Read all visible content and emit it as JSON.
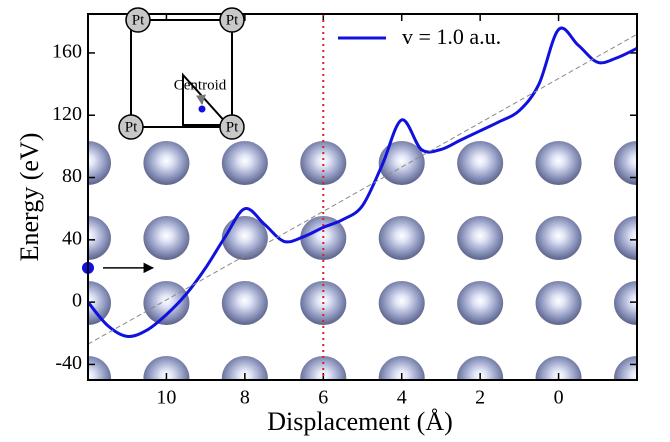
{
  "chart_data": {
    "type": "line",
    "xlabel": "Displacement (Å)",
    "ylabel": "Energy (eV)",
    "xlim": [
      12,
      -2
    ],
    "ylim": [
      -50,
      185
    ],
    "xticks": [
      10,
      8,
      6,
      4,
      2,
      0
    ],
    "yticks": [
      -40,
      0,
      40,
      80,
      120,
      160
    ],
    "legend": "upper right",
    "series": [
      {
        "name": "v = 1.0 a.u.",
        "color": "#1010e0",
        "style": "solid",
        "x": [
          12,
          11.5,
          11,
          10.5,
          10,
          9.5,
          9,
          8.5,
          8,
          7.5,
          7,
          6.5,
          6,
          5.5,
          5,
          4.5,
          4,
          3.5,
          3,
          2.5,
          2,
          1.5,
          1,
          0.5,
          0,
          -0.5,
          -1,
          -1.5,
          -2
        ],
        "values": [
          0,
          -15,
          -22,
          -18,
          -8,
          5,
          22,
          42,
          60,
          50,
          39,
          42,
          48,
          53,
          62,
          88,
          117,
          98,
          98,
          104,
          110,
          116,
          123,
          140,
          175,
          165,
          154,
          157,
          163
        ]
      },
      {
        "color": "#888888",
        "style": "dashed",
        "x": [
          12,
          -2
        ],
        "values": [
          -27,
          172
        ]
      }
    ],
    "vline": {
      "x": 6,
      "color": "#e02020"
    },
    "marker": {
      "x": 12,
      "y": 22,
      "color": "#1010e0"
    },
    "inset": {
      "atoms": [
        "Pt",
        "Pt",
        "Pt",
        "Pt"
      ],
      "annotation": "Centroid"
    }
  }
}
